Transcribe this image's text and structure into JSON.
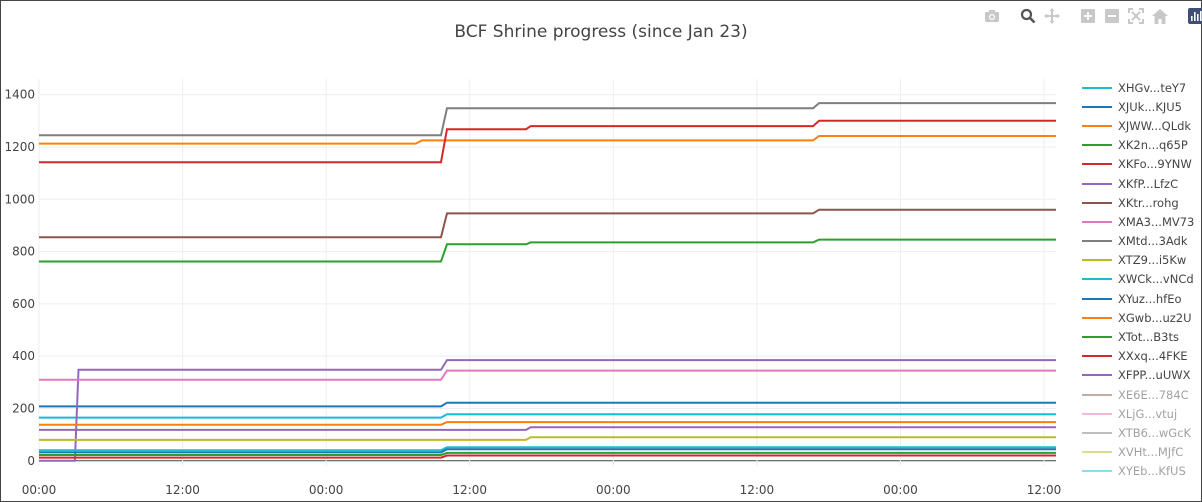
{
  "chart_data": {
    "type": "line",
    "title": "BCF Shrine progress (since Jan 23)",
    "xlabel": "",
    "ylabel": "",
    "ylim": [
      -20,
      1460
    ],
    "x_hours_range": [
      0,
      85
    ],
    "x_ticks": [
      {
        "label": "00:00",
        "hours": 0
      },
      {
        "label": "12:00",
        "hours": 12
      },
      {
        "label": "00:00",
        "hours": 24
      },
      {
        "label": "12:00",
        "hours": 36
      },
      {
        "label": "00:00",
        "hours": 48
      },
      {
        "label": "12:00",
        "hours": 60
      },
      {
        "label": "00:00",
        "hours": 72
      },
      {
        "label": "12:00",
        "hours": 84
      }
    ],
    "y_ticks": [
      0,
      200,
      400,
      600,
      800,
      1000,
      1200,
      1400
    ],
    "grid": true,
    "legend_position": "right",
    "series": [
      {
        "name": "XHGv...teY7",
        "color": "#17becf",
        "visible": true,
        "points": [
          [
            0,
            165
          ],
          [
            33.6,
            165
          ],
          [
            34.1,
            178
          ],
          [
            85,
            178
          ]
        ]
      },
      {
        "name": "XJUk...KJU5",
        "color": "#1f77b4",
        "visible": true,
        "points": [
          [
            0,
            208
          ],
          [
            33.6,
            208
          ],
          [
            34.1,
            222
          ],
          [
            85,
            222
          ]
        ]
      },
      {
        "name": "XJWW...QLdk",
        "color": "#ff7f0e",
        "visible": true,
        "points": [
          [
            0,
            1213
          ],
          [
            31.5,
            1213
          ],
          [
            32,
            1225
          ],
          [
            64.7,
            1225
          ],
          [
            65.2,
            1242
          ],
          [
            85,
            1242
          ]
        ]
      },
      {
        "name": "XK2n...q65P",
        "color": "#2ca02c",
        "visible": true,
        "points": [
          [
            0,
            762
          ],
          [
            33.6,
            762
          ],
          [
            34.1,
            828
          ],
          [
            40.7,
            828
          ],
          [
            41.1,
            835
          ],
          [
            64.7,
            835
          ],
          [
            65.2,
            846
          ],
          [
            85,
            846
          ]
        ]
      },
      {
        "name": "XKFo...9YNW",
        "color": "#d62728",
        "visible": true,
        "points": [
          [
            0,
            1142
          ],
          [
            33.6,
            1142
          ],
          [
            34.1,
            1268
          ],
          [
            40.7,
            1268
          ],
          [
            41.1,
            1280
          ],
          [
            64.7,
            1280
          ],
          [
            65.2,
            1300
          ],
          [
            85,
            1300
          ]
        ]
      },
      {
        "name": "XKfP...LfzC",
        "color": "#9467bd",
        "visible": true,
        "points": [
          [
            0,
            0
          ],
          [
            3,
            0
          ],
          [
            3.3,
            348
          ],
          [
            33.6,
            348
          ],
          [
            34.1,
            385
          ],
          [
            85,
            385
          ]
        ]
      },
      {
        "name": "XKtr...rohg",
        "color": "#8c564b",
        "visible": true,
        "points": [
          [
            0,
            855
          ],
          [
            33.6,
            855
          ],
          [
            34.1,
            946
          ],
          [
            64.7,
            946
          ],
          [
            65.2,
            960
          ],
          [
            85,
            960
          ]
        ]
      },
      {
        "name": "XMA3...MV73",
        "color": "#e377c2",
        "visible": true,
        "points": [
          [
            0,
            310
          ],
          [
            33.6,
            310
          ],
          [
            34.1,
            345
          ],
          [
            85,
            345
          ]
        ]
      },
      {
        "name": "XMtd...3Adk",
        "color": "#7f7f7f",
        "visible": true,
        "points": [
          [
            0,
            1245
          ],
          [
            33.6,
            1245
          ],
          [
            34.1,
            1348
          ],
          [
            64.7,
            1348
          ],
          [
            65.2,
            1368
          ],
          [
            85,
            1368
          ]
        ]
      },
      {
        "name": "XTZ9...i5Kw",
        "color": "#bcbd22",
        "visible": true,
        "points": [
          [
            0,
            80
          ],
          [
            40.7,
            80
          ],
          [
            41.1,
            90
          ],
          [
            85,
            90
          ]
        ]
      },
      {
        "name": "XWCk...vNCd",
        "color": "#17becf",
        "visible": true,
        "points": [
          [
            0,
            40
          ],
          [
            33.6,
            40
          ],
          [
            34.1,
            52
          ],
          [
            85,
            52
          ]
        ]
      },
      {
        "name": "XYuz...hfEo",
        "color": "#1f77b4",
        "visible": true,
        "points": [
          [
            0,
            32
          ],
          [
            33.6,
            32
          ],
          [
            34.1,
            44
          ],
          [
            85,
            44
          ]
        ]
      },
      {
        "name": "XGwb...uz2U",
        "color": "#ff7f0e",
        "visible": true,
        "points": [
          [
            0,
            138
          ],
          [
            33.6,
            138
          ],
          [
            34.1,
            148
          ],
          [
            85,
            148
          ]
        ]
      },
      {
        "name": "XTot...B3ts",
        "color": "#2ca02c",
        "visible": true,
        "points": [
          [
            0,
            22
          ],
          [
            33.6,
            22
          ],
          [
            34.1,
            30
          ],
          [
            85,
            30
          ]
        ]
      },
      {
        "name": "XXxq...4FKE",
        "color": "#d62728",
        "visible": true,
        "points": [
          [
            0,
            12
          ],
          [
            33.6,
            12
          ],
          [
            34.1,
            20
          ],
          [
            85,
            20
          ]
        ]
      },
      {
        "name": "XFPP...uUWX",
        "color": "#9467bd",
        "visible": true,
        "points": [
          [
            0,
            118
          ],
          [
            40.7,
            118
          ],
          [
            41.1,
            128
          ],
          [
            85,
            128
          ]
        ]
      },
      {
        "name": "XE6E...784C",
        "color": "#8c564b",
        "visible": false,
        "points": []
      },
      {
        "name": "XLjG...vtuj",
        "color": "#e377c2",
        "visible": false,
        "points": []
      },
      {
        "name": "XTB6...wGcK",
        "color": "#7f7f7f",
        "visible": false,
        "points": []
      },
      {
        "name": "XVHt...MJfC",
        "color": "#bcbd22",
        "visible": false,
        "points": []
      },
      {
        "name": "XYEb...KfUS",
        "color": "#17becf",
        "visible": false,
        "points": []
      }
    ]
  },
  "modebar": {
    "buttons": [
      "camera-icon",
      "zoom-icon",
      "pan-icon",
      "zoom-in-icon",
      "zoom-out-icon",
      "autoscale-icon",
      "home-icon",
      "plotly-logo-icon"
    ]
  },
  "colors": {
    "grid": "#eeeeee",
    "zero_line": "#444444",
    "text": "#444444"
  }
}
